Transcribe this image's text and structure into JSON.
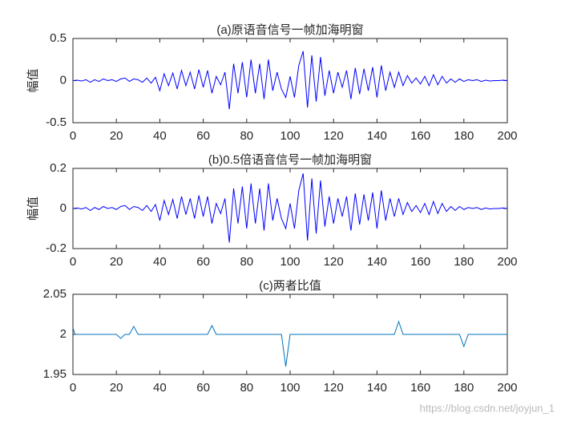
{
  "chart_data": [
    {
      "type": "line",
      "title": "(a)原语音信号一帧加海明窗",
      "ylabel": "幅值",
      "xlim": [
        0,
        200
      ],
      "xticks": [
        0,
        20,
        40,
        60,
        80,
        100,
        120,
        140,
        160,
        180,
        200
      ],
      "ylim": [
        -0.5,
        0.5
      ],
      "yticks": [
        -0.5,
        0,
        0.5
      ],
      "color": "#0000ff",
      "x": [
        0,
        2,
        4,
        6,
        8,
        10,
        12,
        14,
        16,
        18,
        20,
        22,
        24,
        26,
        28,
        30,
        32,
        34,
        36,
        38,
        40,
        42,
        44,
        46,
        48,
        50,
        52,
        54,
        56,
        58,
        60,
        62,
        64,
        66,
        68,
        70,
        72,
        74,
        76,
        78,
        80,
        82,
        84,
        86,
        88,
        90,
        92,
        94,
        96,
        98,
        100,
        102,
        104,
        106,
        108,
        110,
        112,
        114,
        116,
        118,
        120,
        122,
        124,
        126,
        128,
        130,
        132,
        134,
        136,
        138,
        140,
        142,
        144,
        146,
        148,
        150,
        152,
        154,
        156,
        158,
        160,
        162,
        164,
        166,
        168,
        170,
        172,
        174,
        176,
        178,
        180,
        182,
        184,
        186,
        188,
        190,
        192,
        194,
        196,
        198,
        200
      ],
      "values": [
        0,
        0.005,
        -0.005,
        0.01,
        -0.02,
        0.01,
        -0.01,
        0.02,
        0,
        0.01,
        -0.01,
        0.02,
        0.03,
        -0.01,
        0.02,
        0.01,
        -0.02,
        0.03,
        -0.03,
        0.04,
        -0.12,
        0.08,
        -0.06,
        0.09,
        -0.1,
        0.12,
        -0.06,
        0.1,
        -0.1,
        0.13,
        -0.08,
        0.12,
        -0.15,
        0.05,
        -0.05,
        0.1,
        -0.34,
        0.2,
        -0.15,
        0.22,
        -0.2,
        0.25,
        -0.15,
        0.2,
        -0.22,
        0.25,
        -0.12,
        0.1,
        -0.1,
        -0.2,
        0.05,
        -0.2,
        0.18,
        0.35,
        -0.32,
        0.3,
        -0.25,
        0.28,
        -0.18,
        0.12,
        -0.15,
        0.1,
        -0.08,
        0.12,
        -0.22,
        0.15,
        -0.16,
        0.14,
        -0.12,
        0.16,
        -0.2,
        0.18,
        -0.12,
        0.1,
        -0.08,
        0.1,
        -0.06,
        0.06,
        -0.03,
        0.03,
        -0.04,
        0.05,
        -0.06,
        0.07,
        -0.05,
        0.05,
        -0.03,
        0.02,
        -0.02,
        0.02,
        -0.01,
        0.01,
        0,
        0.01,
        -0.01,
        0.005,
        -0.005,
        0,
        0,
        0.005,
        0
      ]
    },
    {
      "type": "line",
      "title": "(b)0.5倍语音信号一帧加海明窗",
      "ylabel": "幅值",
      "xlim": [
        0,
        200
      ],
      "xticks": [
        0,
        20,
        40,
        60,
        80,
        100,
        120,
        140,
        160,
        180,
        200
      ],
      "ylim": [
        -0.2,
        0.2
      ],
      "yticks": [
        -0.2,
        0,
        0.2
      ],
      "color": "#0000ff",
      "x": [
        0,
        2,
        4,
        6,
        8,
        10,
        12,
        14,
        16,
        18,
        20,
        22,
        24,
        26,
        28,
        30,
        32,
        34,
        36,
        38,
        40,
        42,
        44,
        46,
        48,
        50,
        52,
        54,
        56,
        58,
        60,
        62,
        64,
        66,
        68,
        70,
        72,
        74,
        76,
        78,
        80,
        82,
        84,
        86,
        88,
        90,
        92,
        94,
        96,
        98,
        100,
        102,
        104,
        106,
        108,
        110,
        112,
        114,
        116,
        118,
        120,
        122,
        124,
        126,
        128,
        130,
        132,
        134,
        136,
        138,
        140,
        142,
        144,
        146,
        148,
        150,
        152,
        154,
        156,
        158,
        160,
        162,
        164,
        166,
        168,
        170,
        172,
        174,
        176,
        178,
        180,
        182,
        184,
        186,
        188,
        190,
        192,
        194,
        196,
        198,
        200
      ],
      "values": [
        0,
        0.0025,
        -0.0025,
        0.005,
        -0.01,
        0.005,
        -0.005,
        0.01,
        0,
        0.005,
        -0.005,
        0.01,
        0.015,
        -0.005,
        0.01,
        0.005,
        -0.01,
        0.015,
        -0.015,
        0.02,
        -0.06,
        0.04,
        -0.03,
        0.045,
        -0.05,
        0.06,
        -0.03,
        0.05,
        -0.05,
        0.065,
        -0.04,
        0.06,
        -0.075,
        0.025,
        -0.025,
        0.05,
        -0.17,
        0.1,
        -0.075,
        0.11,
        -0.1,
        0.125,
        -0.075,
        0.1,
        -0.11,
        0.125,
        -0.06,
        0.05,
        -0.05,
        -0.1,
        0.025,
        -0.1,
        0.09,
        0.175,
        -0.16,
        0.15,
        -0.125,
        0.14,
        -0.09,
        0.06,
        -0.075,
        0.05,
        -0.04,
        0.06,
        -0.11,
        0.075,
        -0.08,
        0.07,
        -0.06,
        0.08,
        -0.1,
        0.09,
        -0.06,
        0.05,
        -0.04,
        0.05,
        -0.03,
        0.03,
        -0.015,
        0.015,
        -0.02,
        0.025,
        -0.03,
        0.035,
        -0.025,
        0.025,
        -0.015,
        0.01,
        -0.01,
        0.01,
        -0.005,
        0.005,
        0,
        0.005,
        -0.005,
        0.0025,
        -0.0025,
        0,
        0,
        0.0025,
        0
      ]
    },
    {
      "type": "line",
      "title": "(c)两者比值",
      "xlim": [
        0,
        200
      ],
      "xticks": [
        0,
        20,
        40,
        60,
        80,
        100,
        120,
        140,
        160,
        180,
        200
      ],
      "ylim": [
        1.95,
        2.05
      ],
      "yticks": [
        1.95,
        2,
        2.05
      ],
      "color": "#0072bd",
      "x": [
        0,
        1,
        3,
        20,
        22,
        24,
        26,
        28,
        30,
        62,
        64,
        66,
        96,
        98,
        100,
        148,
        150,
        152,
        178,
        180,
        182,
        200
      ],
      "values": [
        2.008,
        2,
        2,
        2,
        1.995,
        2,
        2,
        2.01,
        2,
        2,
        2.011,
        2,
        2,
        1.96,
        2,
        2,
        2.016,
        2,
        2,
        1.985,
        2,
        2
      ]
    }
  ],
  "watermark": "https://blog.csdn.net/joyjun_1"
}
